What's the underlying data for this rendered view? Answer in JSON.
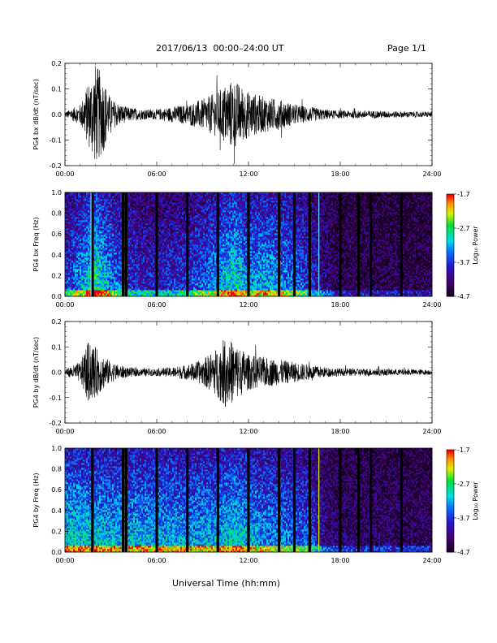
{
  "header": {
    "title": "2017/06/13  00:00–24:00 UT",
    "page": "Page 1/1"
  },
  "x_axis_label": "Universal Time (hh:mm)",
  "chart_data": [
    {
      "type": "line",
      "ylabel": "PG4 bx dB/dt (nT/sec)",
      "xlabel": "",
      "x_ticks": [
        "00:00",
        "06:00",
        "12:00",
        "18:00",
        "24:00"
      ],
      "xlim": [
        "00:00",
        "24:00"
      ],
      "ylim": [
        -0.2,
        0.2
      ],
      "y_ticks": [
        "0.2",
        "0.1",
        "0.0",
        "-0.1",
        "-0.2"
      ],
      "series": [
        {
          "x_hours": [
            0,
            1,
            1.5,
            2,
            2.5,
            3,
            4,
            5,
            6,
            7,
            8,
            9,
            10,
            10.5,
            11,
            12,
            13,
            14,
            15,
            16,
            17,
            18,
            20,
            22,
            24
          ],
          "envelope": [
            0.01,
            0.04,
            0.12,
            0.2,
            0.15,
            0.06,
            0.03,
            0.02,
            0.02,
            0.03,
            0.04,
            0.06,
            0.09,
            0.12,
            0.14,
            0.09,
            0.07,
            0.06,
            0.04,
            0.03,
            0.02,
            0.015,
            0.015,
            0.012,
            0.01
          ]
        }
      ]
    },
    {
      "type": "heatmap",
      "ylabel": "PG4 bx Freq (Hz)",
      "xlabel": "",
      "x_ticks": [
        "00:00",
        "06:00",
        "12:00",
        "18:00",
        "24:00"
      ],
      "xlim": [
        "00:00",
        "24:00"
      ],
      "ylim": [
        0,
        1.0
      ],
      "y_ticks": [
        "1.0",
        "0.8",
        "0.6",
        "0.4",
        "0.2",
        "0.0"
      ],
      "colorbar": {
        "label": "Log₁₀ Power",
        "ticks": [
          "-1.7",
          "-2.7",
          "-3.7",
          "-4.7"
        ],
        "range": [
          -4.7,
          -1.7
        ]
      },
      "gaps_hours": [
        1.8,
        3.8,
        4.0,
        6.0,
        8.0,
        10.0,
        12.0,
        14.0,
        15.0,
        16.0,
        18.0,
        19.2,
        20.0,
        22.0
      ],
      "highlight_lines_hours": [
        1.7,
        16.6
      ],
      "activity_hours": [
        0,
        1,
        2,
        3,
        4,
        6,
        8,
        10,
        11,
        12,
        13,
        14,
        15,
        16,
        17,
        18,
        24
      ],
      "activity_level": [
        0.35,
        0.5,
        0.7,
        0.5,
        0.35,
        0.3,
        0.35,
        0.5,
        0.65,
        0.5,
        0.55,
        0.5,
        0.45,
        0.35,
        0.2,
        0.1,
        0.08
      ]
    },
    {
      "type": "line",
      "ylabel": "PG4 by dB/dt (nT/sec)",
      "xlabel": "",
      "x_ticks": [
        "00:00",
        "06:00",
        "12:00",
        "18:00",
        "24:00"
      ],
      "xlim": [
        "00:00",
        "24:00"
      ],
      "ylim": [
        -0.2,
        0.2
      ],
      "y_ticks": [
        "0.2",
        "0.1",
        "0.0",
        "-0.1",
        "-0.2"
      ],
      "series": [
        {
          "x_hours": [
            0,
            1,
            1.5,
            2,
            2.5,
            3,
            4,
            5,
            6,
            7,
            8,
            9,
            10,
            10.5,
            11,
            12,
            13,
            14,
            15,
            16,
            17,
            18,
            20,
            22,
            24
          ],
          "envelope": [
            0.012,
            0.04,
            0.12,
            0.1,
            0.07,
            0.04,
            0.02,
            0.015,
            0.015,
            0.02,
            0.03,
            0.05,
            0.1,
            0.14,
            0.12,
            0.07,
            0.06,
            0.05,
            0.04,
            0.03,
            0.02,
            0.015,
            0.015,
            0.012,
            0.01
          ]
        }
      ]
    },
    {
      "type": "heatmap",
      "ylabel": "PG4 by Freq (Hz)",
      "xlabel": "",
      "x_ticks": [
        "00:00",
        "06:00",
        "12:00",
        "18:00",
        "24:00"
      ],
      "xlim": [
        "00:00",
        "24:00"
      ],
      "ylim": [
        0,
        1.0
      ],
      "y_ticks": [
        "1.0",
        "0.8",
        "0.6",
        "0.4",
        "0.2",
        "0.0"
      ],
      "colorbar": {
        "label": "Log₁₀ Power",
        "ticks": [
          "-1.7",
          "-2.7",
          "-3.7",
          "-4.7"
        ],
        "range": [
          -4.7,
          -1.7
        ]
      },
      "gaps_hours": [
        1.8,
        3.8,
        4.0,
        6.0,
        8.0,
        10.0,
        12.0,
        14.0,
        15.0,
        16.0,
        18.0,
        19.2,
        20.0,
        22.0
      ],
      "highlight_lines_hours": [
        16.6
      ],
      "activity_hours": [
        0,
        1,
        2,
        3,
        4,
        6,
        8,
        10,
        11,
        12,
        13,
        14,
        15,
        16,
        17,
        18,
        24
      ],
      "activity_level": [
        0.62,
        0.6,
        0.58,
        0.55,
        0.55,
        0.55,
        0.52,
        0.55,
        0.6,
        0.55,
        0.5,
        0.48,
        0.45,
        0.42,
        0.2,
        0.15,
        0.12
      ]
    }
  ]
}
